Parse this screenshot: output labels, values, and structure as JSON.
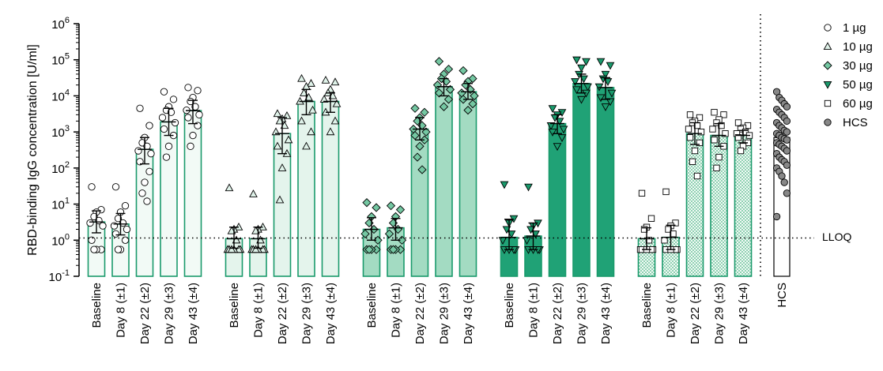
{
  "chart_data": {
    "type": "bar",
    "ylabel": "RBD-binding IgG concentration [U/ml]",
    "yscale": "log",
    "ylim": [
      0.1,
      1000000
    ],
    "yticks": [
      {
        "value": 1000000,
        "base": "10",
        "exp": "6"
      },
      {
        "value": 100000,
        "base": "10",
        "exp": "5"
      },
      {
        "value": 10000,
        "base": "10",
        "exp": "4"
      },
      {
        "value": 1000,
        "base": "10",
        "exp": "3"
      },
      {
        "value": 100,
        "base": "10",
        "exp": "2"
      },
      {
        "value": 10,
        "base": "10",
        "exp": "1"
      },
      {
        "value": 1,
        "base": "10",
        "exp": "0"
      },
      {
        "value": 0.1,
        "base": "10",
        "exp": "-1"
      }
    ],
    "lloq": {
      "value": 1.15,
      "label": "LLOQ"
    },
    "legend_position": "right",
    "categories": [
      "Baseline",
      "Day 8 (±1)",
      "Day 22 (±2)",
      "Day 29 (±3)",
      "Day 43 (±4)"
    ],
    "series": [
      {
        "name": "1 µg",
        "marker": "circle",
        "marker_fill": "#ffffff",
        "bar_fill": "#f2faf6",
        "bar_stroke": "#1a9a6c",
        "pattern": "none",
        "groups": [
          {
            "bar": 3.2,
            "low": 1.6,
            "high": 6.5,
            "points": [
              30,
              7,
              6,
              4.5,
              3.5,
              3,
              2.5,
              1,
              0.55,
              0.55,
              0.55
            ]
          },
          {
            "bar": 2.8,
            "low": 1.4,
            "high": 5.5,
            "points": [
              30,
              9,
              6,
              4,
              3,
              2.5,
              2,
              1.5,
              1,
              0.55,
              0.55
            ]
          },
          {
            "bar": 330,
            "low": 130,
            "high": 700,
            "points": [
              4500,
              1500,
              700,
              500,
              400,
              300,
              250,
              150,
              80,
              40,
              20,
              12
            ]
          },
          {
            "bar": 1900,
            "low": 800,
            "high": 4500,
            "points": [
              13000,
              8000,
              5000,
              4000,
              3500,
              2500,
              1800,
              1200,
              800,
              400,
              200
            ]
          },
          {
            "bar": 3900,
            "low": 1700,
            "high": 7500,
            "points": [
              17000,
              14000,
              9000,
              7000,
              5000,
              4000,
              3000,
              2500,
              1500,
              800,
              400
            ]
          }
        ]
      },
      {
        "name": "10 µg",
        "marker": "triangle-up",
        "marker_fill": "#dff2e9",
        "bar_fill": "#e4f4ec",
        "bar_stroke": "#1a9a6c",
        "pattern": "none",
        "groups": [
          {
            "bar": 1.1,
            "low": 0.6,
            "high": 2.3,
            "points": [
              28,
              2.3,
              2,
              1.8,
              1,
              0.55,
              0.55,
              0.55,
              0.55,
              0.55,
              0.55
            ]
          },
          {
            "bar": 1.1,
            "low": 0.6,
            "high": 2.3,
            "points": [
              19,
              2.3,
              2,
              1.8,
              1,
              0.55,
              0.55,
              0.55,
              0.55,
              0.55,
              0.55
            ]
          },
          {
            "bar": 900,
            "low": 250,
            "high": 2500,
            "points": [
              3200,
              2800,
              2300,
              2000,
              1500,
              1000,
              600,
              400,
              250,
              100,
              13
            ]
          },
          {
            "bar": 7000,
            "low": 3000,
            "high": 15000,
            "points": [
              30000,
              22000,
              18000,
              12000,
              9000,
              7000,
              4000,
              2000,
              1000,
              400
            ]
          },
          {
            "bar": 7000,
            "low": 3500,
            "high": 12000,
            "points": [
              27000,
              24000,
              15000,
              12000,
              10000,
              8000,
              6000,
              3500,
              2000,
              1000
            ]
          }
        ]
      },
      {
        "name": "30 µg",
        "marker": "diamond",
        "marker_fill": "#74c7a2",
        "bar_fill": "#a3dbc2",
        "bar_stroke": "#1a9a6c",
        "pattern": "none",
        "groups": [
          {
            "bar": 2.0,
            "low": 1.0,
            "high": 4.2,
            "points": [
              11,
              8,
              4.5,
              3,
              2,
              1.5,
              1,
              0.55,
              0.55,
              0.55,
              0.55
            ]
          },
          {
            "bar": 2.2,
            "low": 1.0,
            "high": 4.0,
            "points": [
              9,
              7,
              4.5,
              3,
              2,
              1.5,
              1,
              0.55,
              0.55,
              0.55,
              0.55
            ]
          },
          {
            "bar": 1200,
            "low": 600,
            "high": 2500,
            "points": [
              4500,
              3500,
              2500,
              2000,
              1500,
              1200,
              1000,
              800,
              600,
              400,
              200,
              90
            ]
          },
          {
            "bar": 18000,
            "low": 10000,
            "high": 30000,
            "points": [
              90000,
              55000,
              40000,
              30000,
              25000,
              20000,
              15000,
              12000,
              8000,
              5000
            ]
          },
          {
            "bar": 13000,
            "low": 8000,
            "high": 22000,
            "points": [
              50000,
              30000,
              25000,
              20000,
              15000,
              12000,
              10000,
              8000,
              6000,
              4000
            ]
          }
        ]
      },
      {
        "name": "50 µg",
        "marker": "triangle-down",
        "marker_fill": "#1a9a6c",
        "bar_fill": "#20a276",
        "bar_stroke": "#1a9a6c",
        "pattern": "none",
        "groups": [
          {
            "bar": 1.2,
            "low": 0.55,
            "high": 3.8,
            "points": [
              35,
              4,
              3,
              2,
              1.5,
              1,
              0.55,
              0.55,
              0.55,
              0.55
            ]
          },
          {
            "bar": 1.3,
            "low": 0.55,
            "high": 3.0,
            "points": [
              30,
              3,
              2.5,
              2,
              1.5,
              1,
              0.55,
              0.55,
              0.55,
              0.55
            ]
          },
          {
            "bar": 1700,
            "low": 900,
            "high": 3000,
            "points": [
              4500,
              3500,
              3000,
              2500,
              2000,
              1500,
              1200,
              1000,
              700,
              400
            ]
          },
          {
            "bar": 22000,
            "low": 12000,
            "high": 40000,
            "points": [
              100000,
              90000,
              60000,
              40000,
              30000,
              25000,
              18000,
              15000,
              12000,
              8000
            ]
          },
          {
            "bar": 17000,
            "low": 8000,
            "high": 32000,
            "points": [
              90000,
              70000,
              40000,
              30000,
              25000,
              18000,
              12000,
              9000,
              7000,
              5000
            ]
          }
        ]
      },
      {
        "name": "60 µg",
        "marker": "square",
        "marker_fill": "#ffffff",
        "bar_fill": "#c7e8d8",
        "bar_stroke": "#1a9a6c",
        "pattern": "check",
        "groups": [
          {
            "bar": 1.1,
            "low": 0.55,
            "high": 2.2,
            "points": [
              20,
              4,
              2.3,
              2,
              1,
              0.55,
              0.55,
              0.55,
              0.55,
              0.55
            ]
          },
          {
            "bar": 1.2,
            "low": 0.55,
            "high": 2.6,
            "points": [
              22,
              3,
              2.5,
              2,
              1.5,
              1,
              0.55,
              0.55,
              0.55,
              0.55
            ]
          },
          {
            "bar": 900,
            "low": 450,
            "high": 1800,
            "points": [
              3000,
              2500,
              2000,
              1800,
              1500,
              1200,
              1000,
              700,
              500,
              300,
              150,
              60
            ]
          },
          {
            "bar": 800,
            "low": 400,
            "high": 1700,
            "points": [
              3500,
              3000,
              2200,
              1800,
              1500,
              1200,
              900,
              600,
              400,
              200,
              100
            ]
          },
          {
            "bar": 800,
            "low": 500,
            "high": 1100,
            "points": [
              1800,
              1500,
              1300,
              1200,
              1000,
              900,
              800,
              700,
              500,
              400,
              300
            ]
          }
        ]
      }
    ],
    "hcs": {
      "category": "HCS",
      "name": "HCS",
      "marker": "circle",
      "marker_fill": "#888888",
      "bar": 700,
      "points": [
        13000,
        9000,
        7500,
        6000,
        5000,
        4200,
        3500,
        3000,
        2500,
        2000,
        1800,
        1500,
        1300,
        1100,
        1000,
        900,
        800,
        700,
        650,
        600,
        500,
        450,
        400,
        350,
        300,
        250,
        200,
        170,
        150,
        120,
        100,
        80,
        60,
        40,
        20,
        4.5
      ]
    }
  }
}
